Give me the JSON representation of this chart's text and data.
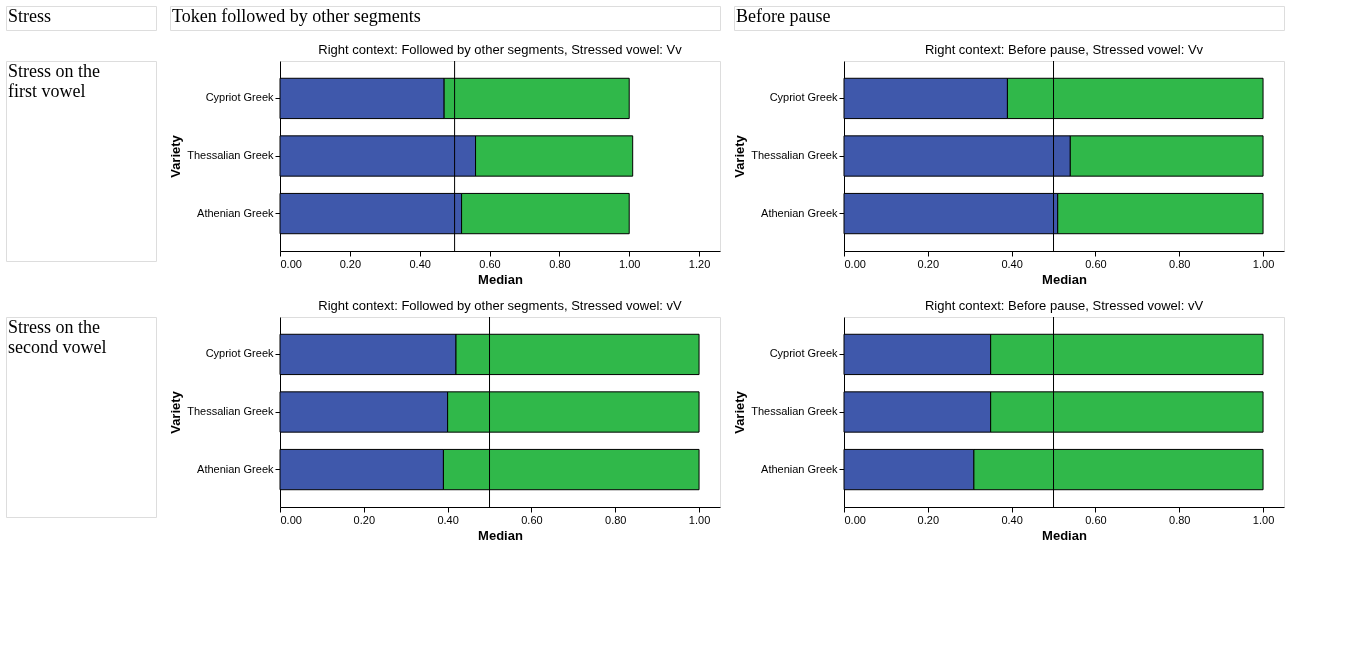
{
  "chart_data": [
    {
      "type": "other",
      "title": "Stress"
    },
    {
      "type": "other",
      "title": "Token followed by other segments"
    },
    {
      "type": "other",
      "title": "Before pause"
    },
    {
      "type": "other",
      "title": "Stress on the first vowel"
    },
    {
      "type": "bar",
      "orientation": "horizontal",
      "stacked": true,
      "title": "Right context: Followed by other segments, Stressed vowel: Vv",
      "xlabel": "Median",
      "ylabel": "Variety",
      "categories": [
        "Cypriot Greek",
        "Thessalian Greek",
        "Athenian Greek"
      ],
      "series": [
        {
          "color": "#3f58ab",
          "values": [
            0.47,
            0.56,
            0.52
          ]
        },
        {
          "color": "#30b84a",
          "values": [
            0.53,
            0.45,
            0.48
          ]
        }
      ],
      "xlim": [
        0,
        1.26
      ],
      "xticks": [
        {
          "value": 0,
          "label": "0.00"
        },
        {
          "value": 0.2,
          "label": "0.20"
        },
        {
          "value": 0.4,
          "label": "0.40"
        },
        {
          "value": 0.6,
          "label": "0.60"
        },
        {
          "value": 0.8,
          "label": "0.80"
        },
        {
          "value": 1,
          "label": "1.00"
        },
        {
          "value": 1.2,
          "label": "1.20"
        }
      ],
      "ref_lines": [
        {
          "axis": "x",
          "value": 0.5,
          "color": "#000000"
        }
      ],
      "grid": false,
      "legend": false
    },
    {
      "type": "bar",
      "orientation": "horizontal",
      "stacked": true,
      "title": "Right context: Before pause, Stressed vowel: Vv",
      "xlabel": "Median",
      "ylabel": "Variety",
      "categories": [
        "Cypriot Greek",
        "Thessalian Greek",
        "Athenian Greek"
      ],
      "series": [
        {
          "color": "#3f58ab",
          "values": [
            0.39,
            0.54,
            0.51
          ]
        },
        {
          "color": "#30b84a",
          "values": [
            0.61,
            0.46,
            0.49
          ]
        }
      ],
      "xlim": [
        0,
        1.05
      ],
      "xticks": [
        {
          "value": 0,
          "label": "0.00"
        },
        {
          "value": 0.2,
          "label": "0.20"
        },
        {
          "value": 0.4,
          "label": "0.40"
        },
        {
          "value": 0.6,
          "label": "0.60"
        },
        {
          "value": 0.8,
          "label": "0.80"
        },
        {
          "value": 1,
          "label": "1.00"
        }
      ],
      "ref_lines": [
        {
          "axis": "x",
          "value": 0.5,
          "color": "#000000"
        }
      ],
      "grid": false,
      "legend": false
    },
    {
      "type": "other",
      "title": "Stress on the second vowel"
    },
    {
      "type": "bar",
      "orientation": "horizontal",
      "stacked": true,
      "title": "Right context: Followed by other segments, Stressed vowel: vV",
      "xlabel": "Median",
      "ylabel": "Variety",
      "categories": [
        "Cypriot Greek",
        "Thessalian Greek",
        "Athenian Greek"
      ],
      "series": [
        {
          "color": "#3f58ab",
          "values": [
            0.42,
            0.4,
            0.39
          ]
        },
        {
          "color": "#30b84a",
          "values": [
            0.58,
            0.6,
            0.61
          ]
        }
      ],
      "xlim": [
        0,
        1.05
      ],
      "xticks": [
        {
          "value": 0,
          "label": "0.00"
        },
        {
          "value": 0.2,
          "label": "0.20"
        },
        {
          "value": 0.4,
          "label": "0.40"
        },
        {
          "value": 0.6,
          "label": "0.60"
        },
        {
          "value": 0.8,
          "label": "0.80"
        },
        {
          "value": 1,
          "label": "1.00"
        }
      ],
      "ref_lines": [
        {
          "axis": "x",
          "value": 0.5,
          "color": "#000000"
        }
      ],
      "grid": false,
      "legend": false
    },
    {
      "type": "bar",
      "orientation": "horizontal",
      "stacked": true,
      "title": "Right context: Before pause, Stressed vowel: vV",
      "xlabel": "Median",
      "ylabel": "Variety",
      "categories": [
        "Cypriot Greek",
        "Thessalian Greek",
        "Athenian Greek"
      ],
      "series": [
        {
          "color": "#3f58ab",
          "values": [
            0.35,
            0.35,
            0.31
          ]
        },
        {
          "color": "#30b84a",
          "values": [
            0.65,
            0.65,
            0.69
          ]
        }
      ],
      "xlim": [
        0,
        1.05
      ],
      "xticks": [
        {
          "value": 0,
          "label": "0.00"
        },
        {
          "value": 0.2,
          "label": "0.20"
        },
        {
          "value": 0.4,
          "label": "0.40"
        },
        {
          "value": 0.6,
          "label": "0.60"
        },
        {
          "value": 0.8,
          "label": "0.80"
        },
        {
          "value": 1,
          "label": "1.00"
        }
      ],
      "ref_lines": [
        {
          "axis": "x",
          "value": 0.5,
          "color": "#000000"
        }
      ],
      "grid": false,
      "legend": false
    }
  ]
}
